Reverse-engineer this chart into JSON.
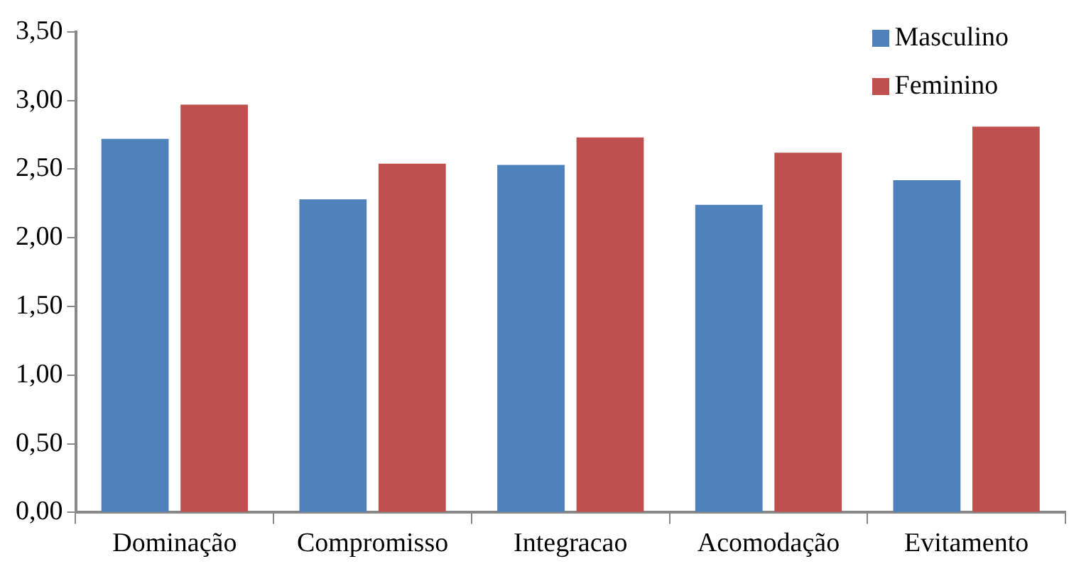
{
  "chart_data": {
    "type": "bar",
    "categories": [
      "Dominação",
      "Compromisso",
      "Integracao",
      "Acomodação",
      "Evitamento"
    ],
    "series": [
      {
        "name": "Masculino",
        "color": "#4f81bd",
        "values": [
          2.72,
          2.28,
          2.53,
          2.24,
          2.42
        ]
      },
      {
        "name": "Feminino",
        "color": "#c0504d",
        "values": [
          2.97,
          2.54,
          2.73,
          2.62,
          2.81
        ]
      }
    ],
    "ylim": [
      0,
      3.5
    ],
    "yticks": [
      {
        "value": 0,
        "label": "0,00"
      },
      {
        "value": 0.5,
        "label": "0,50"
      },
      {
        "value": 1,
        "label": "1,00"
      },
      {
        "value": 1.5,
        "label": "1,50"
      },
      {
        "value": 2,
        "label": "2,00"
      },
      {
        "value": 2.5,
        "label": "2,50"
      },
      {
        "value": 3,
        "label": "3,00"
      },
      {
        "value": 3.5,
        "label": "3,50"
      }
    ],
    "grid": false,
    "legend": "top right"
  }
}
